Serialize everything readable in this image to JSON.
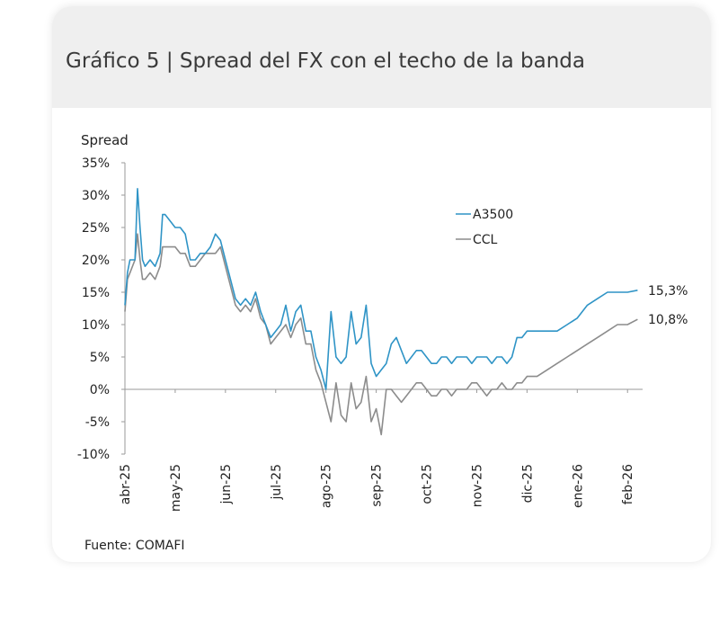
{
  "title": "Gráfico 5 | Spread del FX con el techo de la banda",
  "source": "Fuente: COMAFI",
  "chart_data": {
    "type": "line",
    "ylabel": "Spread",
    "xlabel": "",
    "ylim": [
      -10,
      35
    ],
    "yticks": [
      35,
      30,
      25,
      20,
      15,
      10,
      5,
      0,
      -5,
      -10
    ],
    "ytick_labels": [
      "35%",
      "30%",
      "25%",
      "20%",
      "15%",
      "10%",
      "5%",
      "0%",
      "-5%",
      "-10%"
    ],
    "xlim": [
      0,
      10.3
    ],
    "xticks": [
      0,
      1,
      2,
      3,
      4,
      5,
      6,
      7,
      8,
      9,
      10
    ],
    "xtick_labels": [
      "abr-25",
      "may-25",
      "jun-25",
      "jul-25",
      "ago-25",
      "sep-25",
      "oct-25",
      "nov-25",
      "dic-25",
      "ene-26",
      "feb-26"
    ],
    "legend": [
      "A3500",
      "CCL"
    ],
    "legend_position": "upper-right",
    "end_labels": [
      "15,3%",
      "10,8%"
    ],
    "series": [
      {
        "name": "A3500",
        "color": "#2f94c6",
        "x": [
          0,
          0.05,
          0.1,
          0.2,
          0.25,
          0.3,
          0.35,
          0.4,
          0.5,
          0.6,
          0.7,
          0.75,
          0.8,
          0.9,
          1.0,
          1.1,
          1.2,
          1.3,
          1.4,
          1.5,
          1.6,
          1.7,
          1.8,
          1.9,
          2.0,
          2.1,
          2.2,
          2.3,
          2.4,
          2.5,
          2.6,
          2.7,
          2.8,
          2.9,
          3.0,
          3.1,
          3.2,
          3.3,
          3.4,
          3.5,
          3.6,
          3.7,
          3.8,
          3.9,
          4.0,
          4.1,
          4.2,
          4.3,
          4.4,
          4.5,
          4.6,
          4.7,
          4.8,
          4.9,
          5.0,
          5.1,
          5.2,
          5.3,
          5.4,
          5.5,
          5.6,
          5.7,
          5.8,
          5.9,
          6.0,
          6.1,
          6.2,
          6.3,
          6.4,
          6.5,
          6.6,
          6.7,
          6.8,
          6.9,
          7.0,
          7.1,
          7.2,
          7.3,
          7.4,
          7.5,
          7.6,
          7.7,
          7.8,
          7.9,
          8.0,
          8.2,
          8.4,
          8.6,
          8.8,
          9.0,
          9.2,
          9.4,
          9.6,
          9.8,
          10.0,
          10.2
        ],
        "values": [
          13,
          18,
          20,
          20,
          31,
          25,
          20,
          19,
          20,
          19,
          21,
          27,
          27,
          26,
          25,
          25,
          24,
          20,
          20,
          21,
          21,
          22,
          24,
          23,
          20,
          17,
          14,
          13,
          14,
          13,
          15,
          12,
          10,
          8,
          9,
          10,
          13,
          9,
          12,
          13,
          9,
          9,
          5,
          3,
          0,
          12,
          5,
          4,
          5,
          12,
          7,
          8,
          13,
          4,
          2,
          3,
          4,
          7,
          8,
          6,
          4,
          5,
          6,
          6,
          5,
          4,
          4,
          5,
          5,
          4,
          5,
          5,
          5,
          4,
          5,
          5,
          5,
          4,
          5,
          5,
          4,
          5,
          8,
          8,
          9,
          9,
          9,
          9,
          10,
          11,
          13,
          14,
          15,
          15,
          15,
          15.3
        ]
      },
      {
        "name": "CCL",
        "color": "#8c8c8c",
        "x": [
          0,
          0.05,
          0.1,
          0.2,
          0.25,
          0.3,
          0.35,
          0.4,
          0.5,
          0.6,
          0.7,
          0.75,
          0.8,
          0.9,
          1.0,
          1.1,
          1.2,
          1.3,
          1.4,
          1.5,
          1.6,
          1.7,
          1.8,
          1.9,
          2.0,
          2.1,
          2.2,
          2.3,
          2.4,
          2.5,
          2.6,
          2.7,
          2.8,
          2.9,
          3.0,
          3.1,
          3.2,
          3.3,
          3.4,
          3.5,
          3.6,
          3.7,
          3.8,
          3.9,
          4.0,
          4.1,
          4.2,
          4.3,
          4.4,
          4.5,
          4.6,
          4.7,
          4.8,
          4.9,
          5.0,
          5.1,
          5.2,
          5.3,
          5.4,
          5.5,
          5.6,
          5.7,
          5.8,
          5.9,
          6.0,
          6.1,
          6.2,
          6.3,
          6.4,
          6.5,
          6.6,
          6.7,
          6.8,
          6.9,
          7.0,
          7.1,
          7.2,
          7.3,
          7.4,
          7.5,
          7.6,
          7.7,
          7.8,
          7.9,
          8.0,
          8.2,
          8.4,
          8.6,
          8.8,
          9.0,
          9.2,
          9.4,
          9.6,
          9.8,
          10.0,
          10.2
        ],
        "values": [
          12,
          17,
          18,
          20,
          24,
          20,
          17,
          17,
          18,
          17,
          19,
          22,
          22,
          22,
          22,
          21,
          21,
          19,
          19,
          20,
          21,
          21,
          21,
          22,
          19,
          16,
          13,
          12,
          13,
          12,
          14,
          11,
          10,
          7,
          8,
          9,
          10,
          8,
          10,
          11,
          7,
          7,
          3,
          1,
          -2,
          -5,
          1,
          -4,
          -5,
          1,
          -3,
          -2,
          2,
          -5,
          -3,
          -7,
          0,
          0,
          -1,
          -2,
          -1,
          0,
          1,
          1,
          0,
          -1,
          -1,
          0,
          0,
          -1,
          0,
          0,
          0,
          1,
          1,
          0,
          -1,
          0,
          0,
          1,
          0,
          0,
          1,
          1,
          2,
          2,
          3,
          4,
          5,
          6,
          7,
          8,
          9,
          10,
          10,
          10.8
        ]
      }
    ]
  }
}
